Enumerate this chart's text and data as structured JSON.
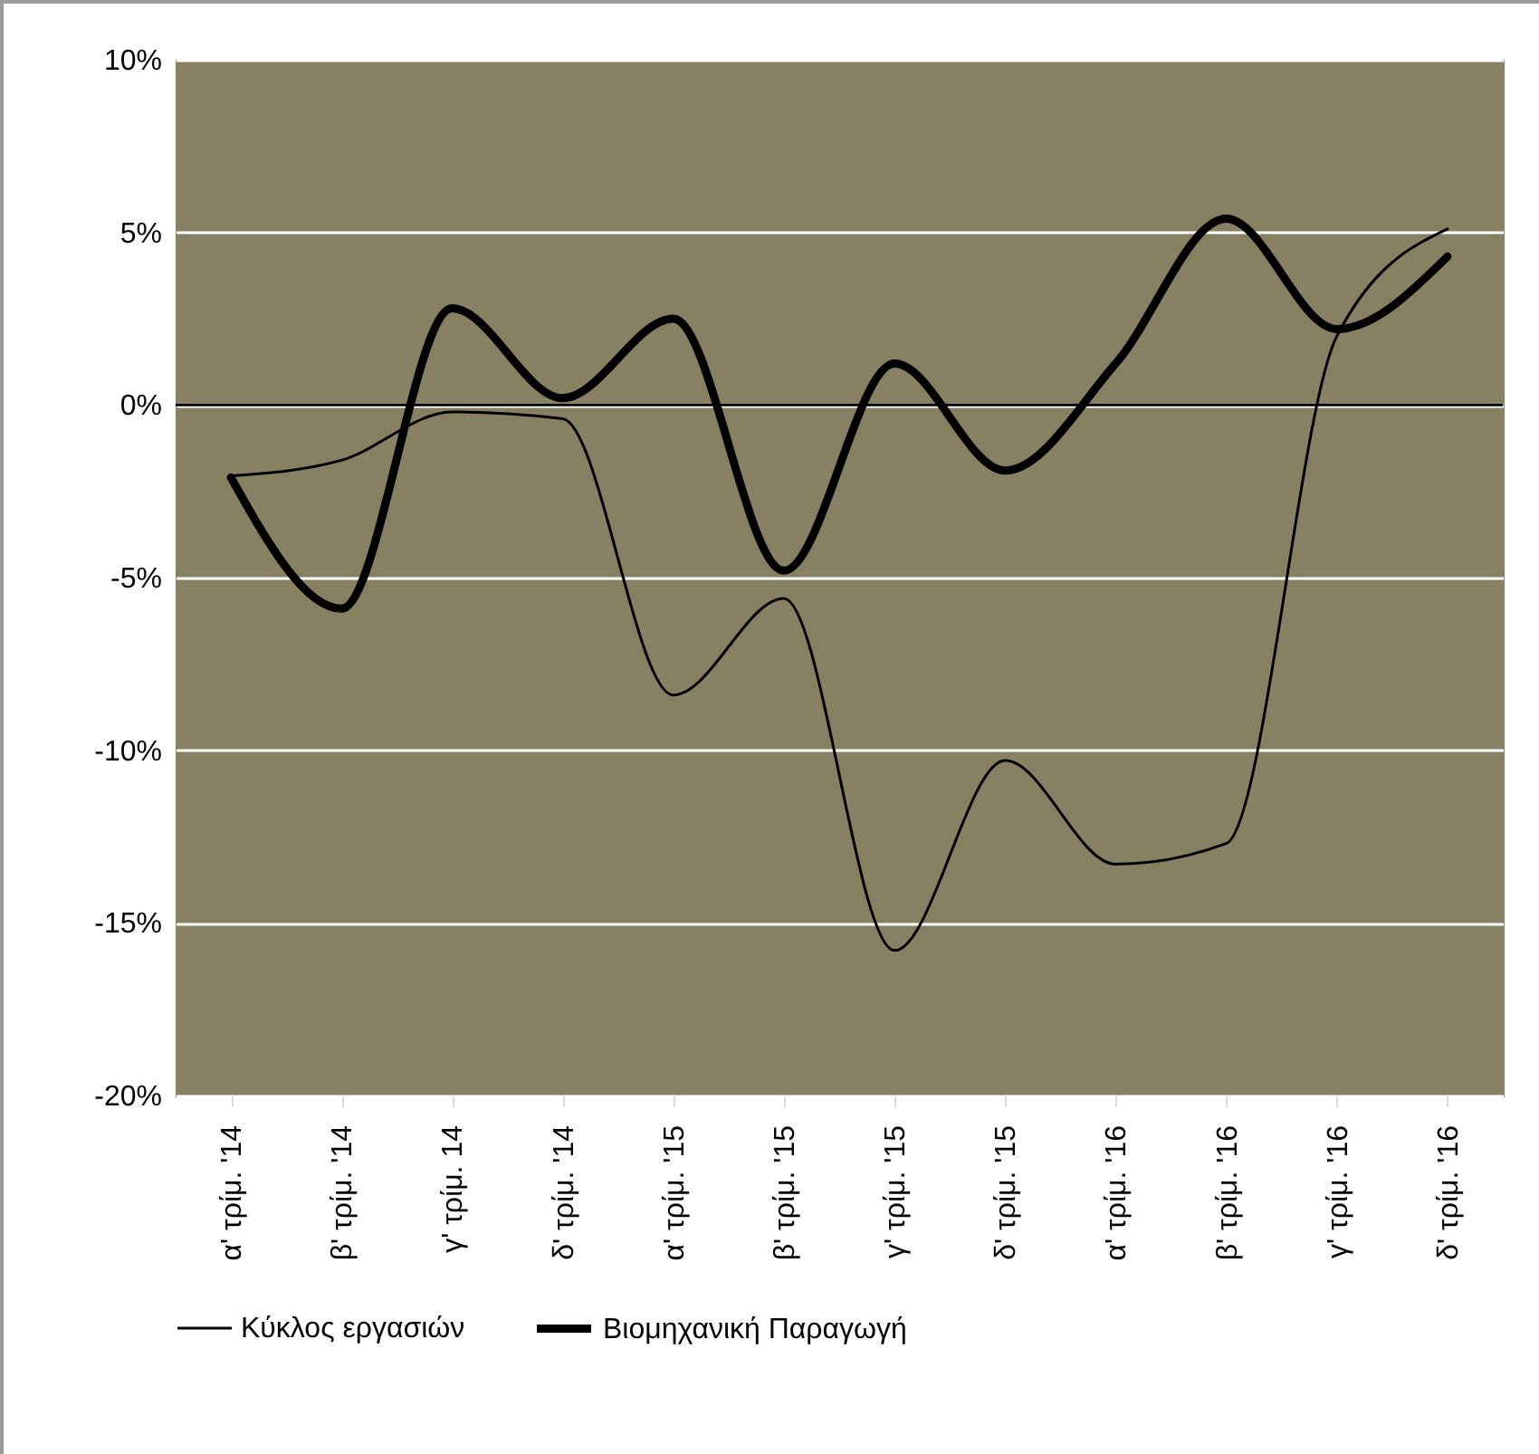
{
  "chart_data": {
    "type": "line",
    "categories": [
      "α' τρίμ. '14",
      "β' τρίμ. '14",
      "γ' τρίμ. 14",
      "δ' τρίμ. '14",
      "α' τρίμ. '15",
      "β' τρίμ. '15",
      "γ' τρίμ. '15",
      "δ' τρίμ. '15",
      "α' τρίμ. '16",
      "β' τρίμ. '16",
      "γ' τρίμ. '16",
      "δ' τρίμ. '16"
    ],
    "series": [
      {
        "name": "Κύκλος εργασιών",
        "color": "#000000",
        "values": [
          -2.05,
          -1.6,
          -0.2,
          -0.4,
          -8.4,
          -5.6,
          -15.8,
          -10.3,
          -13.3,
          -12.7,
          2.0,
          5.1
        ]
      },
      {
        "name": "Βιομηχανική Παραγωγή",
        "color": "#000000",
        "values": [
          -2.1,
          -5.9,
          2.8,
          0.2,
          2.5,
          -4.8,
          1.2,
          -1.9,
          1.2,
          5.4,
          2.2,
          4.3
        ]
      }
    ],
    "ylim": [
      -20,
      10
    ],
    "yticks": [
      {
        "value": -20,
        "label": "-20%"
      },
      {
        "value": -15,
        "label": "-15%"
      },
      {
        "value": -10,
        "label": "-10%"
      },
      {
        "value": -5,
        "label": "-5%"
      },
      {
        "value": 0,
        "label": "0%"
      },
      {
        "value": 5,
        "label": "5%"
      },
      {
        "value": 10,
        "label": "10%"
      }
    ],
    "ref_lines": [
      {
        "axis": "y",
        "value": 0,
        "color": "#000000"
      }
    ],
    "grid": "y",
    "legend": "bottom",
    "marker": "none",
    "line_style": "solid"
  }
}
